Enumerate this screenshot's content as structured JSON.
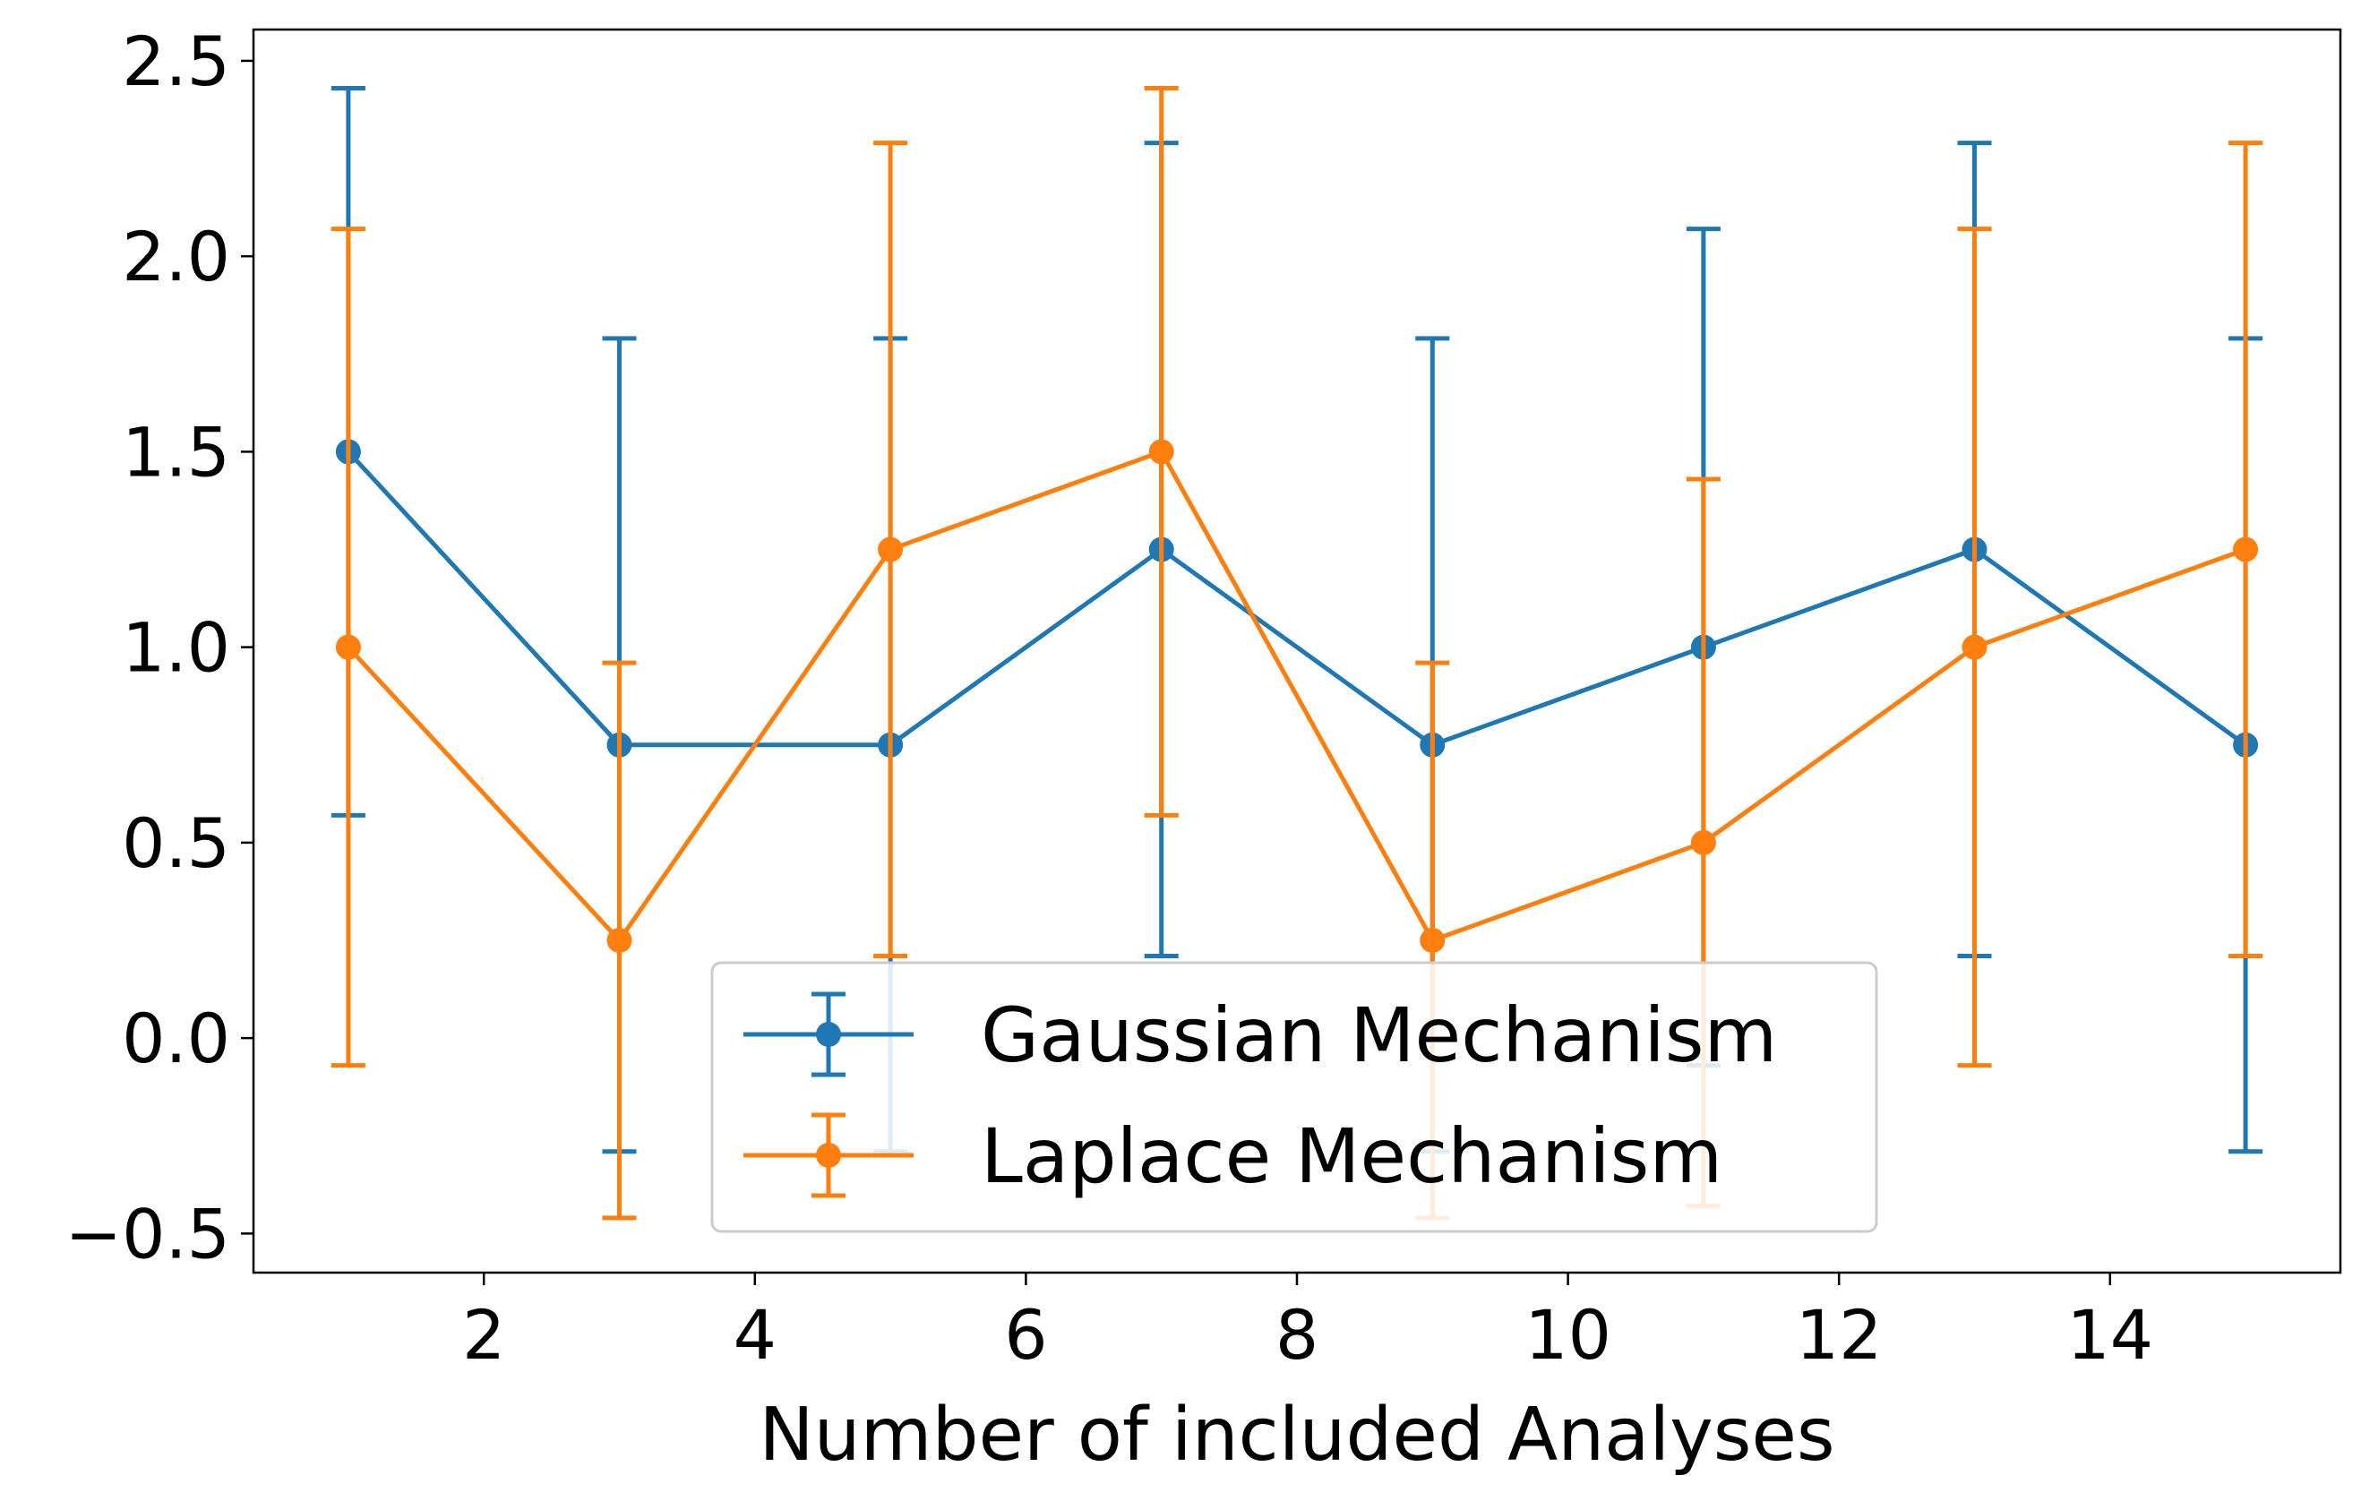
{
  "chart_data": {
    "type": "line",
    "xlabel": "Number of included Analyses",
    "ylabel": "",
    "xlim": [
      0.3,
      15.7
    ],
    "ylim": [
      -0.6,
      2.58
    ],
    "xticks": [
      2,
      4,
      6,
      8,
      10,
      12,
      14
    ],
    "xtick_labels": [
      "2",
      "4",
      "6",
      "8",
      "10",
      "12",
      "14"
    ],
    "yticks": [
      -0.5,
      0.0,
      0.5,
      1.0,
      1.5,
      2.0,
      2.5
    ],
    "ytick_labels": [
      "−0.5",
      "0.0",
      "0.5",
      "1.0",
      "1.5",
      "2.0",
      "2.5"
    ],
    "grid": false,
    "legend_position": "bottom-center",
    "x": [
      1,
      3,
      5,
      7,
      9,
      11,
      13,
      15
    ],
    "series": [
      {
        "name": "Gaussian Mechanism",
        "color": "#1f77b4",
        "values": [
          1.5,
          0.75,
          0.75,
          1.25,
          0.75,
          1.0,
          1.25,
          0.75
        ],
        "err_low": [
          0.57,
          -0.29,
          -0.29,
          0.21,
          -0.29,
          -0.07,
          0.21,
          -0.29
        ],
        "err_high": [
          2.43,
          1.79,
          1.79,
          2.29,
          1.79,
          2.07,
          2.29,
          1.79
        ]
      },
      {
        "name": "Laplace Mechanism",
        "color": "#ff7f0e",
        "values": [
          1.0,
          0.25,
          1.25,
          1.5,
          0.25,
          0.5,
          1.0,
          1.25
        ],
        "err_low": [
          -0.07,
          -0.46,
          0.21,
          0.57,
          -0.46,
          -0.43,
          -0.07,
          0.21
        ],
        "err_high": [
          2.07,
          0.96,
          2.29,
          2.43,
          0.96,
          1.43,
          2.07,
          2.29
        ]
      }
    ]
  }
}
